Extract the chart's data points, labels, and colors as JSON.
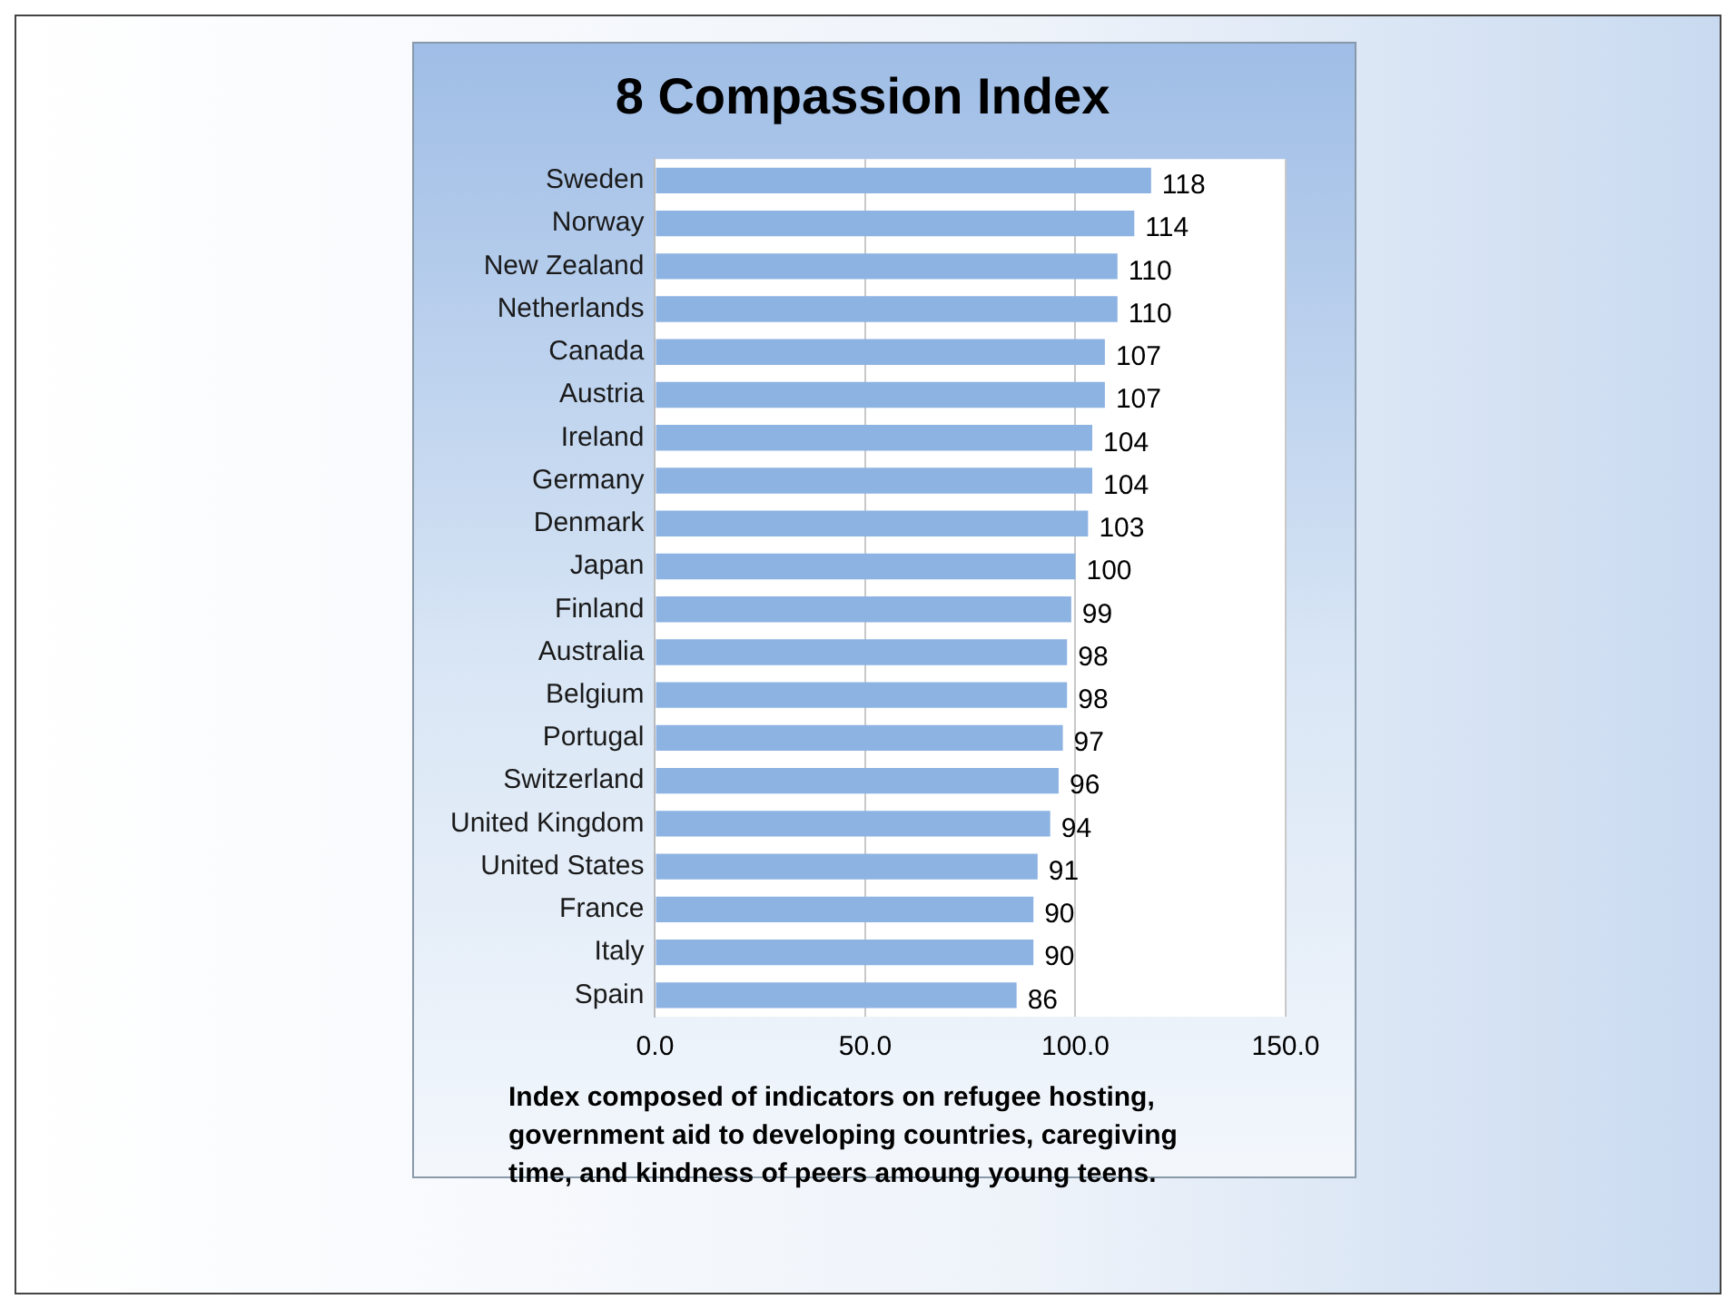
{
  "chart_data": {
    "type": "bar",
    "title": "8 Compassion Index",
    "orientation": "horizontal",
    "categories": [
      "Sweden",
      "Norway",
      "New Zealand",
      "Netherlands",
      "Canada",
      "Austria",
      "Ireland",
      "Germany",
      "Denmark",
      "Japan",
      "Finland",
      "Australia",
      "Belgium",
      "Portugal",
      "Switzerland",
      "United Kingdom",
      "United States",
      "France",
      "Italy",
      "Spain"
    ],
    "values": [
      118,
      114,
      110,
      110,
      107,
      107,
      104,
      104,
      103,
      100,
      99,
      98,
      98,
      97,
      96,
      94,
      91,
      90,
      90,
      86
    ],
    "color": "#8db3e2",
    "xlim": [
      0,
      150
    ],
    "xticks": [
      {
        "value": 0,
        "label": "0.0"
      },
      {
        "value": 50,
        "label": "50.0"
      },
      {
        "value": 100,
        "label": "100.0"
      },
      {
        "value": 150,
        "label": "150.0"
      }
    ],
    "grid": "x",
    "data_labels": true,
    "annotations": [
      "Index composed of indicators on refugee hosting, government aid to developing countries, caregiving time, and kindness of peers amoung young teens."
    ]
  }
}
